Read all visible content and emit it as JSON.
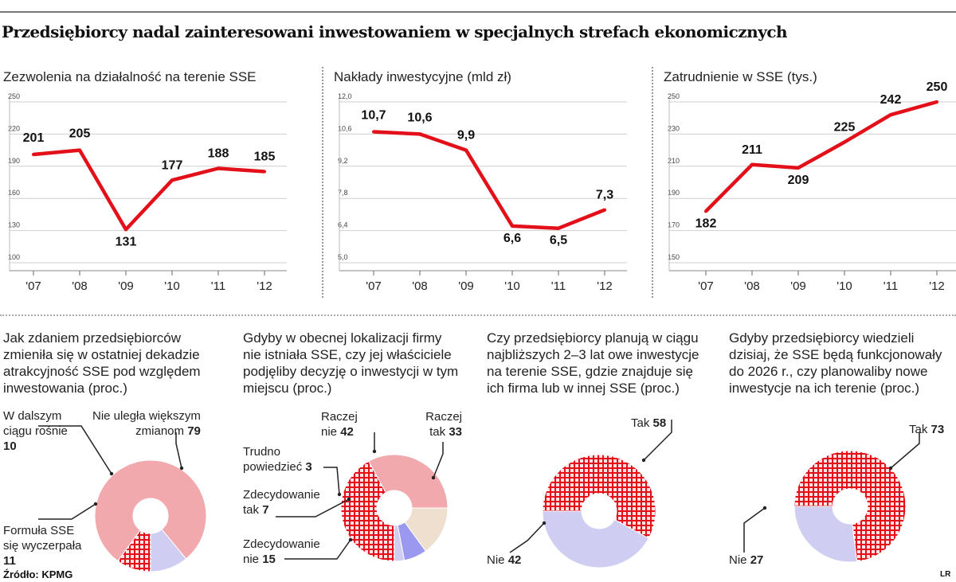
{
  "title": "Przedsiębiorcy nadal zainteresowani inwestowaniem w specjalnych strefach ekonomicznych",
  "source": "Źródło: KPMG",
  "credit": "LR",
  "colors": {
    "line": "#e3101a",
    "pink": "#f2a9ad",
    "lavender": "#cfcdf2",
    "purple": "#9b98ef",
    "beige": "#efdfcf",
    "red": "#e3101a"
  },
  "chart_data": [
    {
      "type": "line",
      "title": "Zezwolenia na działalność na terenie SSE",
      "categories": [
        "'07",
        "'08",
        "'09",
        "'10",
        "'11",
        "'12"
      ],
      "values": [
        201,
        205,
        131,
        177,
        188,
        185
      ],
      "data_labels": [
        "201",
        "205",
        "131",
        "177",
        "188",
        "185"
      ],
      "ylim": [
        100,
        250
      ],
      "yticks": [
        "250",
        "220",
        "190",
        "160",
        "130",
        "100"
      ],
      "yvals": [
        250,
        220,
        190,
        160,
        130,
        100
      ]
    },
    {
      "type": "line",
      "title": "Nakłady inwestycyjne (mld zł)",
      "categories": [
        "'07",
        "'08",
        "'09",
        "'10",
        "'11",
        "'12"
      ],
      "values": [
        10.7,
        10.6,
        9.9,
        6.6,
        6.5,
        7.3
      ],
      "data_labels": [
        "10,7",
        "10,6",
        "9,9",
        "6,6",
        "6,5",
        "7,3"
      ],
      "ylim": [
        5.0,
        12.0
      ],
      "yticks": [
        "12,0",
        "10,6",
        "9,2",
        "7,8",
        "6,4",
        "5,0"
      ],
      "yvals": [
        12.0,
        10.6,
        9.2,
        7.8,
        6.4,
        5.0
      ]
    },
    {
      "type": "line",
      "title": "Zatrudnienie w SSE (tys.)",
      "categories": [
        "'07",
        "'08",
        "'09",
        "'10",
        "'11",
        "'12"
      ],
      "values": [
        182,
        211,
        209,
        225,
        242,
        250
      ],
      "data_labels": [
        "182",
        "211",
        "209",
        "225",
        "242",
        "250"
      ],
      "ylim": [
        150,
        250
      ],
      "yticks": [
        "250",
        "230",
        "210",
        "190",
        "170",
        "150"
      ],
      "yvals": [
        250,
        230,
        210,
        190,
        170,
        150
      ]
    },
    {
      "type": "pie",
      "question": "Jak zdaniem przedsiębiorców zmieniła się w ostatniej dekadzie atrakcyjność SSE pod względem inwestowania (proc.)",
      "slices": [
        {
          "label_line1": "Nie uległa większym",
          "label_line2": "zmianom",
          "value": 79,
          "color": "pink",
          "hatch": false
        },
        {
          "label_line1": "Formuła SSE",
          "label_line2": "się wyczerpała",
          "value": 11,
          "color": "lavender",
          "hatch": false
        },
        {
          "label_line1": "W dalszym",
          "label_line2": "ciągu rośnie",
          "value": 10,
          "color": "red",
          "hatch": true
        }
      ]
    },
    {
      "type": "pie",
      "question": "Gdyby w obecnej lokalizacji firmy nie istniała SSE, czy jej właściciele podjęliby decyzję o inwestycji w tym miejscu (proc.)",
      "slices": [
        {
          "label_line1": "Raczej",
          "label_line2": "nie",
          "value": 42,
          "color": "red",
          "hatch": true
        },
        {
          "label_line1": "Raczej",
          "label_line2": "tak",
          "value": 33,
          "color": "pink",
          "hatch": false
        },
        {
          "label_line1": "Zdecydowanie",
          "label_line2": "nie",
          "value": 15,
          "color": "beige",
          "hatch": false
        },
        {
          "label_line1": "Zdecydowanie",
          "label_line2": "tak",
          "value": 7,
          "color": "purple",
          "hatch": false
        },
        {
          "label_line1": "Trudno",
          "label_line2": "powiedzieć",
          "value": 3,
          "color": "lavender",
          "hatch": false
        }
      ]
    },
    {
      "type": "pie",
      "question": "Czy przedsiębiorcy planują w ciągu najbliższych 2–3 lat owe inwestycje na terenie SSE, gdzie znajduje się ich firma lub w innej SSE (proc.)",
      "slices": [
        {
          "label_line1": "Tak",
          "label_line2": "",
          "value": 58,
          "color": "red",
          "hatch": true
        },
        {
          "label_line1": "Nie",
          "label_line2": "",
          "value": 42,
          "color": "lavender",
          "hatch": false
        }
      ]
    },
    {
      "type": "pie",
      "question": "Gdyby przedsiębiorcy wiedzieli dzisiaj, że SSE będą funkcjonowały do 2026 r., czy planowaliby nowe inwestycje na ich terenie (proc.)",
      "slices": [
        {
          "label_line1": "Tak",
          "label_line2": "",
          "value": 73,
          "color": "red",
          "hatch": true
        },
        {
          "label_line1": "Nie",
          "label_line2": "",
          "value": 27,
          "color": "lavender",
          "hatch": false
        }
      ]
    }
  ]
}
